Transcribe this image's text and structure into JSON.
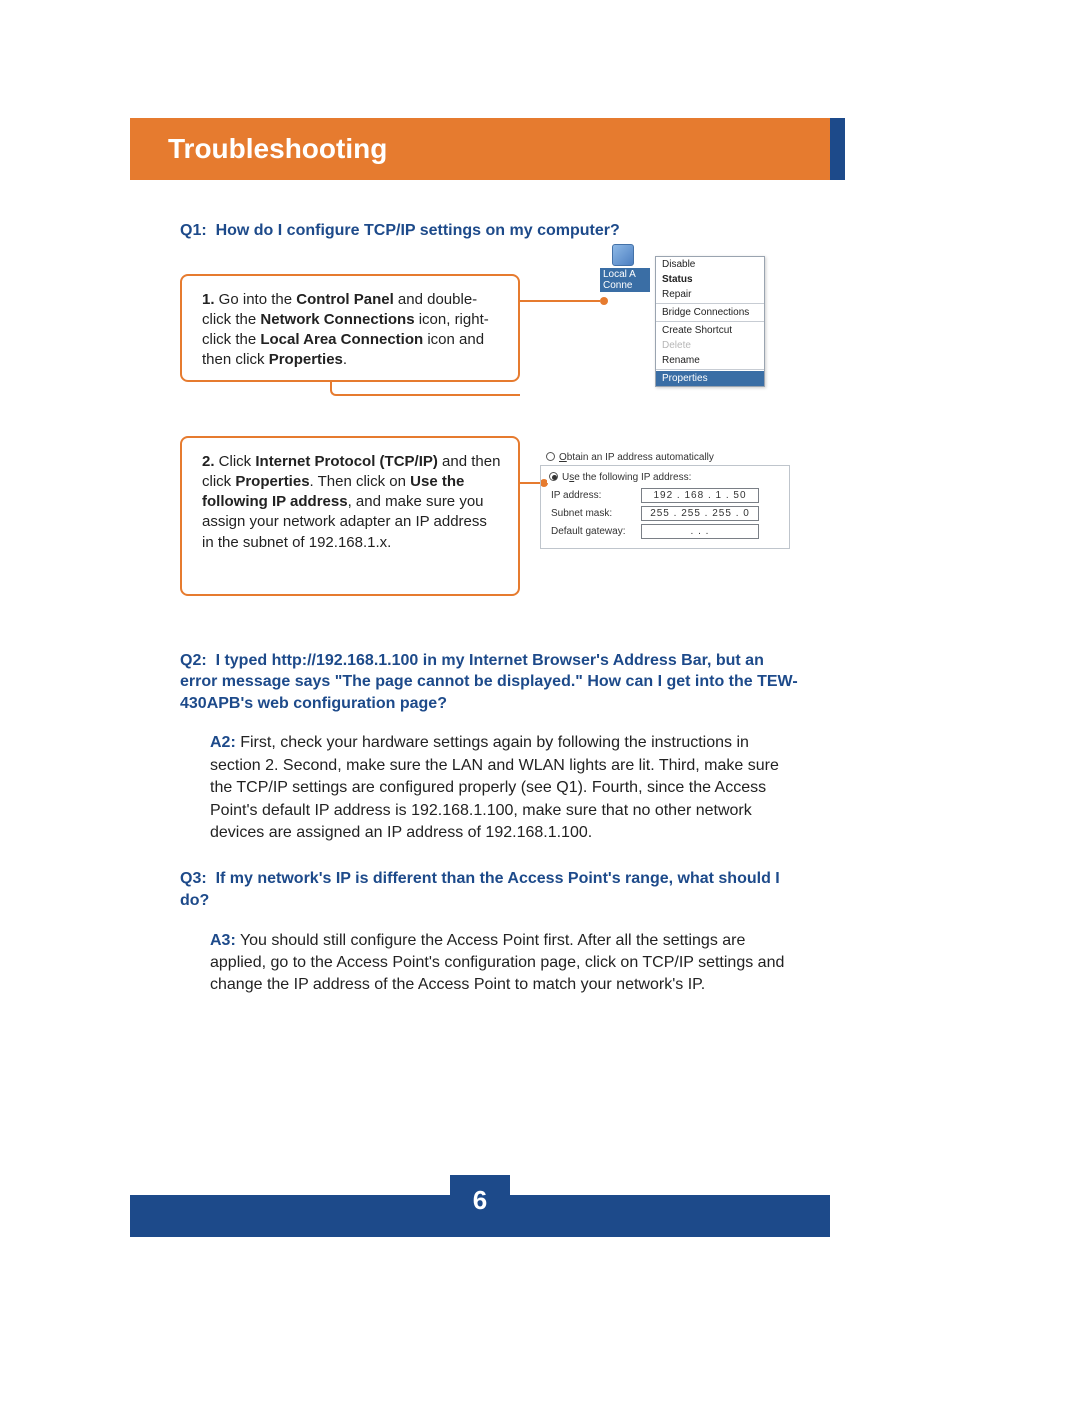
{
  "header": {
    "title": "Troubleshooting"
  },
  "q1": {
    "label": "Q1:",
    "text": "How do I configure TCP/IP settings on my computer?",
    "step1": {
      "num": "1.",
      "pre": " Go into the ",
      "b1": "Control Panel",
      "mid1": " and double-click the ",
      "b2": "Network Connections",
      "mid2": " icon, right-click the ",
      "b3": "Local Area Connection",
      "mid3": " icon and then click ",
      "b4": "Properties",
      "end": "."
    },
    "step2": {
      "num": "2.",
      "pre": " Click ",
      "b1": "Internet Protocol (TCP/IP)",
      "mid1": " and then click ",
      "b2": "Properties",
      "mid2": ".  Then click on ",
      "b3": "Use the following IP address",
      "mid3": ", and make sure you assign your network adapter an IP address in the subnet of 192.168.1.x."
    },
    "ctx": {
      "nic_label": "Local A\nConne",
      "items": [
        "Disable",
        "Status",
        "Repair"
      ],
      "bridge": "Bridge Connections",
      "shortcut": "Create Shortcut",
      "delete": "Delete",
      "rename": "Rename",
      "properties": "Properties",
      "status_bold": true
    },
    "ip": {
      "radio_auto": "Obtain an IP address automatically",
      "radio_manual": "Use the following IP address:",
      "rows": [
        {
          "lbl": "IP address:",
          "val": "192 . 168 .   1  .  50"
        },
        {
          "lbl": "Subnet mask:",
          "val": "255 . 255 . 255 .   0"
        },
        {
          "lbl": "Default gateway:",
          "val": "   .       .       .   "
        }
      ]
    }
  },
  "q2": {
    "label": "Q2:",
    "text": "I typed http://192.168.1.100 in my Internet Browser's Address Bar, but an error message says \"The page cannot be displayed.\" How can I get into the TEW-430APB's web configuration page?",
    "a_label": "A2:",
    "a_text": " First, check your hardware settings again by following the instructions in section 2.  Second, make sure the LAN and WLAN lights are lit.  Third, make sure the TCP/IP settings are configured properly (see Q1).   Fourth, since the Access Point's default IP address is 192.168.1.100, make sure that no other network devices are assigned an IP address of 192.168.1.100."
  },
  "q3": {
    "label": "Q3:",
    "text": "If my network's IP is different than the Access Point's range, what should I do?",
    "a_label": "A3:",
    "a_text": " You should still configure the Access Point first. After all the settings are applied, go to the Access Point's configuration page, click on TCP/IP settings and change the IP address of the Access Point to match your network's IP."
  },
  "footer": {
    "page": "6"
  },
  "colors": {
    "orange": "#e67b2f",
    "navy": "#1d4a8a",
    "text": "#222222"
  }
}
